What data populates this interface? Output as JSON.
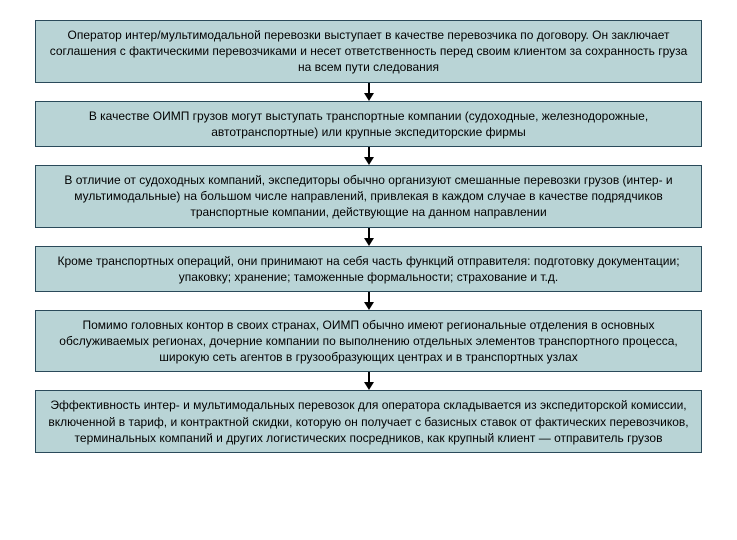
{
  "flowchart": {
    "type": "flowchart",
    "direction": "vertical",
    "box_fill": "#b9d4d6",
    "box_border": "#2a4a5a",
    "arrow_color": "#000000",
    "font_size": 12,
    "font_family": "Arial",
    "text_color": "#000000",
    "canvas_background": "#ffffff",
    "nodes": [
      {
        "id": "n1",
        "text": "Оператор интер/мультимодальной перевозки выступает в качестве перевозчика по договору. Он заключает соглашения с фактическими перевозчиками и несет ответственность перед своим клиентом за сохранность груза на всем пути следования"
      },
      {
        "id": "n2",
        "text": "В качестве ОИМП грузов могут выступать транспортные компании (судоходные, железнодорожные, автотранспортные) или крупные экспедиторские фирмы"
      },
      {
        "id": "n3",
        "text": "В отличие от судоходных компаний, экспедиторы обычно организуют смешанные перевозки грузов (интер- и мультимодальные) на большом числе направлений, привлекая в каждом случае в качестве подрядчиков транспортные компании, действующие на данном направлении"
      },
      {
        "id": "n4",
        "text": "Кроме транспортных операций, они принимают на себя часть функций отправителя: подготовку документации; упаковку; хранение; таможенные формальности; страхование и т.д."
      },
      {
        "id": "n5",
        "text": "Помимо головных контор в своих странах, ОИМП обычно имеют региональные отделения в основных обслуживаемых регионах, дочерние компании по выполнению отдельных элементов транспортного процесса, широкую сеть агентов в грузообразующих центрах и в транспортных узлах"
      },
      {
        "id": "n6",
        "text": "Эффективность интер- и мультимодальных перевозок для оператора складывается из экспедиторской комиссии, включенной в тариф, и контрактной скидки, которую он получает с базисных ставок от фактических перевозчиков, терминальных компаний и других логистических посредников, как крупный клиент — отправитель грузов"
      }
    ],
    "edges": [
      {
        "from": "n1",
        "to": "n2"
      },
      {
        "from": "n2",
        "to": "n3"
      },
      {
        "from": "n3",
        "to": "n4"
      },
      {
        "from": "n4",
        "to": "n5"
      },
      {
        "from": "n5",
        "to": "n6"
      }
    ]
  }
}
